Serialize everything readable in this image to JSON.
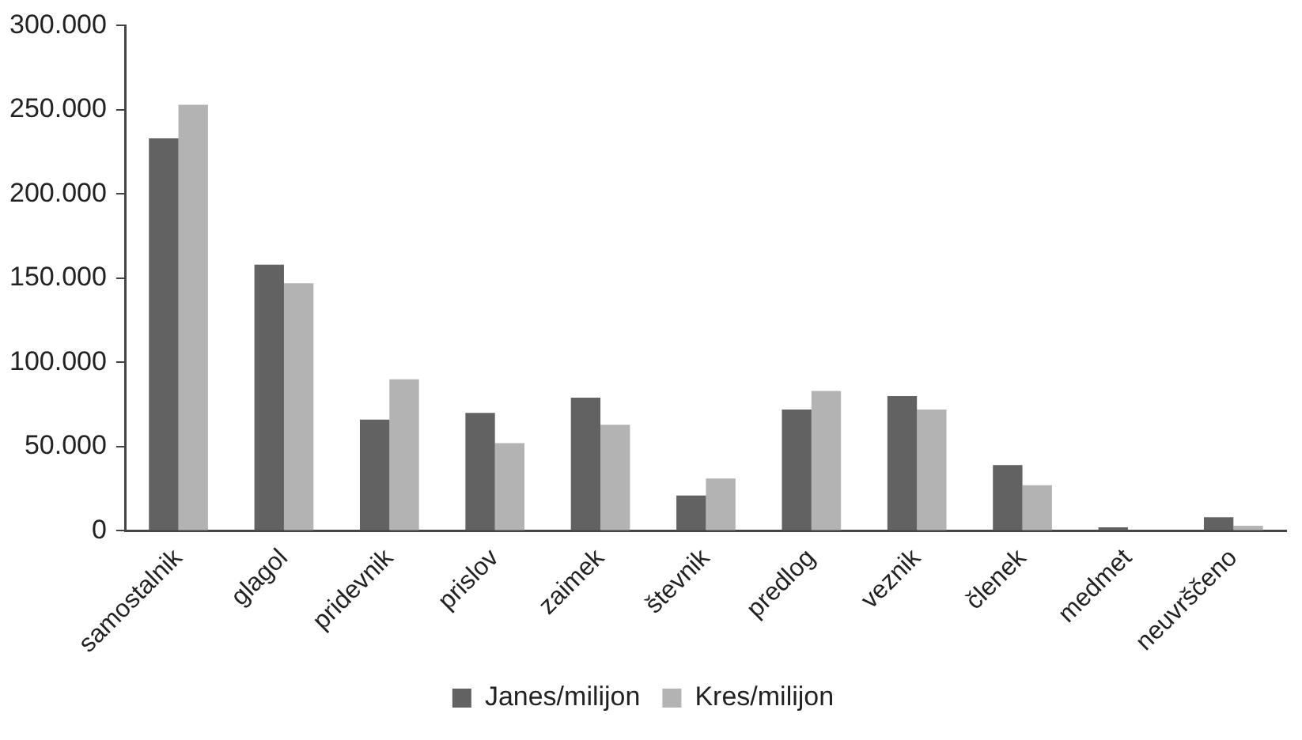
{
  "chart_data": {
    "type": "bar",
    "categories": [
      "samostalnik",
      "glagol",
      "pridevnik",
      "prislov",
      "zaimek",
      "števnik",
      "predlog",
      "veznik",
      "členek",
      "medmet",
      "neuvrščeno"
    ],
    "series": [
      {
        "name": "Janes/milijon",
        "color": "#626262",
        "values": [
          233000,
          158000,
          66000,
          70000,
          79000,
          21000,
          72000,
          80000,
          39000,
          2000,
          8000
        ]
      },
      {
        "name": "Kres/milijon",
        "color": "#b3b3b3",
        "values": [
          253000,
          147000,
          90000,
          52000,
          63000,
          31000,
          83000,
          72000,
          27000,
          0,
          3000
        ]
      }
    ],
    "ylim": [
      0,
      300000
    ],
    "yticks": [
      {
        "value": 0,
        "label": "0"
      },
      {
        "value": 50000,
        "label": "50.000"
      },
      {
        "value": 100000,
        "label": "100.000"
      },
      {
        "value": 150000,
        "label": "150.000"
      },
      {
        "value": 200000,
        "label": "200.000"
      },
      {
        "value": 250000,
        "label": "250.000"
      },
      {
        "value": 300000,
        "label": "300.000"
      }
    ],
    "grid": false,
    "legend": "bottom"
  }
}
